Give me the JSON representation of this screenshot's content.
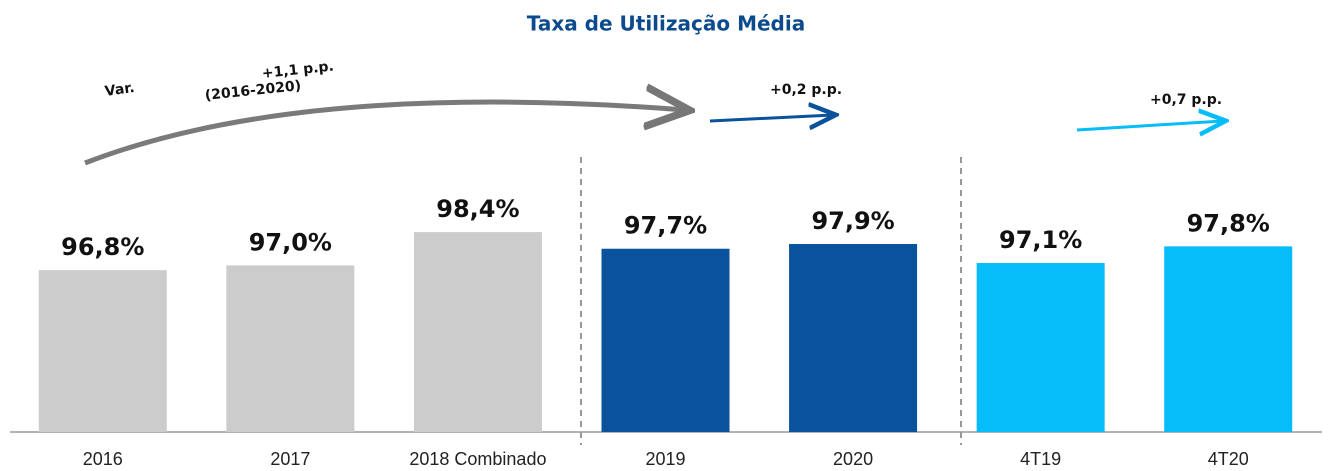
{
  "chart_data": {
    "type": "bar",
    "title": "Taxa de Utilização Média",
    "categories": [
      "2016",
      "2017",
      "2018 Combinado",
      "2019",
      "2020",
      "4T19",
      "4T20"
    ],
    "values": [
      96.8,
      97.0,
      98.4,
      97.7,
      97.9,
      97.1,
      97.8
    ],
    "value_labels": [
      "96,8%",
      "97,0%",
      "98,4%",
      "97,7%",
      "97,9%",
      "97,1%",
      "97,8%"
    ],
    "colors": [
      "#cccccc",
      "#cccccc",
      "#cccccc",
      "#0a539c",
      "#0a539c",
      "#06bdfa",
      "#06bdfa"
    ],
    "ylim": [
      90,
      100
    ],
    "annotations": [
      "Var.",
      "(2016-2020)",
      "+1,1 p.p.",
      "+0,2 p.p.",
      "+0,7 p.p."
    ]
  }
}
